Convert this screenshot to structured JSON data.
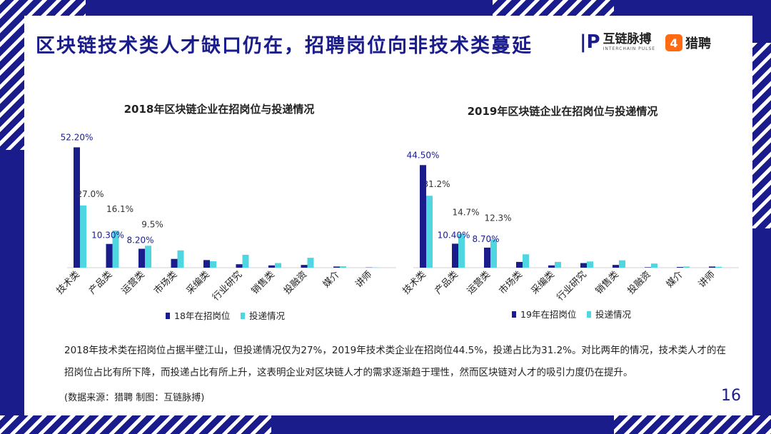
{
  "title": "区块链技术类人才缺口仍在，招聘岗位向非技术类蔓延",
  "logos": {
    "interchain": {
      "cn": "互链脉搏",
      "en": "INTERCHAIN PULSE",
      "mark": "|P"
    },
    "liepin": {
      "cn": "猎聘",
      "mark": "4"
    }
  },
  "colors": {
    "series1": "#1a1c8c",
    "series2": "#4fd6e0",
    "accent": "#1a1c8c"
  },
  "chart_data": [
    {
      "type": "bar",
      "title": "2018年区块链企业在招岗位与投递情况",
      "categories": [
        "技术类",
        "产品类",
        "运营类",
        "市场类",
        "采编类",
        "行业研究",
        "销售类",
        "投融资",
        "媒介",
        "讲师"
      ],
      "series": [
        {
          "name": "18年在招岗位",
          "values": [
            52.2,
            10.3,
            8.2,
            3.8,
            3.3,
            1.5,
            1.0,
            1.2,
            0.5,
            0.1
          ]
        },
        {
          "name": "投递情况",
          "values": [
            27.0,
            16.1,
            9.5,
            7.5,
            2.8,
            5.6,
            2.0,
            4.3,
            0.6,
            0.1
          ]
        }
      ],
      "data_labels": [
        {
          "series": 0,
          "index": 0,
          "text": "52.20%"
        },
        {
          "series": 1,
          "index": 0,
          "text": "27.0%"
        },
        {
          "series": 0,
          "index": 1,
          "text": "10.30%"
        },
        {
          "series": 1,
          "index": 1,
          "text": "16.1%"
        },
        {
          "series": 0,
          "index": 2,
          "text": "8.20%"
        },
        {
          "series": 1,
          "index": 2,
          "text": "9.5%"
        }
      ],
      "ylim": [
        0,
        55
      ],
      "legend": "bottom"
    },
    {
      "type": "bar",
      "title": "2019年区块链企业在招岗位与投递情况",
      "categories": [
        "技术类",
        "产品类",
        "运营类",
        "市场类",
        "采编类",
        "行业研究",
        "销售类",
        "投融资",
        "媒介",
        "讲师"
      ],
      "series": [
        {
          "name": "19年在招岗位",
          "values": [
            44.5,
            10.4,
            8.7,
            2.5,
            1.0,
            2.0,
            1.2,
            0.2,
            0.3,
            0.5
          ]
        },
        {
          "name": "投递情况",
          "values": [
            31.2,
            14.7,
            12.3,
            5.8,
            2.5,
            2.7,
            3.2,
            1.8,
            0.5,
            0.4
          ]
        }
      ],
      "data_labels": [
        {
          "series": 0,
          "index": 0,
          "text": "44.50%"
        },
        {
          "series": 1,
          "index": 0,
          "text": "31.2%"
        },
        {
          "series": 0,
          "index": 1,
          "text": "10.40%"
        },
        {
          "series": 1,
          "index": 1,
          "text": "14.7%"
        },
        {
          "series": 0,
          "index": 2,
          "text": "8.70%"
        },
        {
          "series": 1,
          "index": 2,
          "text": "12.3%"
        }
      ],
      "ylim": [
        0,
        50
      ],
      "legend": "bottom"
    }
  ],
  "description": [
    "2018年技术类在招岗位占据半壁江山，但投递情况仅为27%，2019年技术类企业在招岗位44.5%，投递占比为31.2%。对比两年的情况，技术类人才的在",
    "招岗位占比有所下降，而投递占比有所上升，这表明企业对区块链人才的需求逐渐趋于理性，然而区块链对人才的吸引力度仍在提升。"
  ],
  "source": "(数据来源：猎聘   制图：互链脉搏)",
  "page_number": "16"
}
